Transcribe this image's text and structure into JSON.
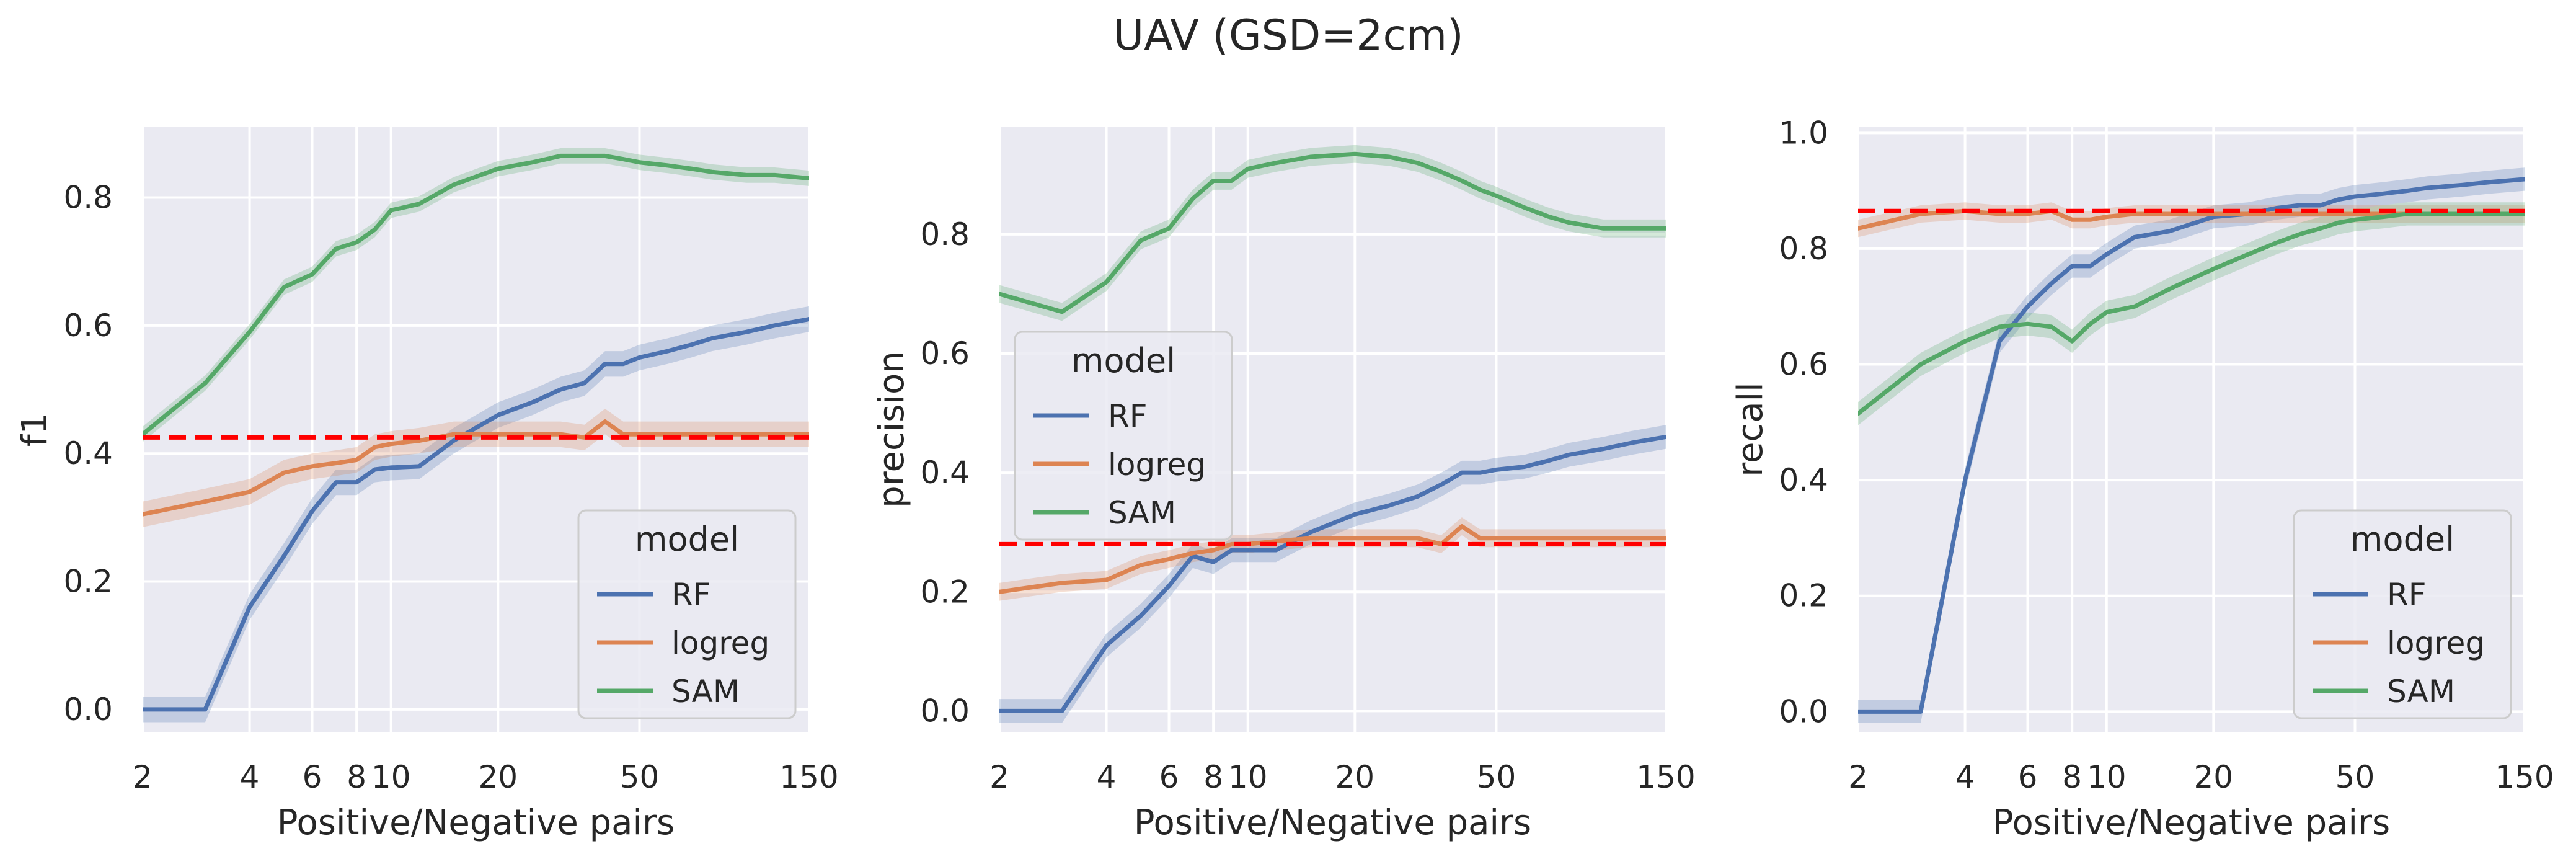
{
  "suptitle": "UAV (GSD=2cm)",
  "legend_title": "model",
  "series_names": [
    "RF",
    "logreg",
    "SAM"
  ],
  "colors": {
    "RF": "#4c72b0",
    "logreg": "#dd8452",
    "SAM": "#55a868",
    "baseline": "#ff0000",
    "panel_bg": "#eaeaf2"
  },
  "xlabel": "Positive/Negative pairs",
  "chart_data": [
    {
      "type": "line",
      "xscale": "log",
      "xlim": [
        2,
        150
      ],
      "ylim": [
        -0.035,
        0.91
      ],
      "xticks": [
        2,
        4,
        6,
        8,
        10,
        20,
        50,
        150
      ],
      "xtick_labels": [
        "2",
        "4",
        "6",
        "8",
        "10",
        "20",
        "50",
        "150"
      ],
      "yticks": [
        0.0,
        0.2,
        0.4,
        0.6,
        0.8
      ],
      "ytick_labels": [
        "0.0",
        "0.2",
        "0.4",
        "0.6",
        "0.8"
      ],
      "xlabel": "Positive/Negative pairs",
      "ylabel": "f1",
      "baseline": 0.425,
      "legend_position": "lower right",
      "series": [
        {
          "name": "RF",
          "x": [
            2,
            3,
            4,
            5,
            6,
            7,
            8,
            9,
            10,
            12,
            15,
            20,
            25,
            30,
            35,
            40,
            45,
            50,
            60,
            70,
            80,
            100,
            120,
            150
          ],
          "y": [
            0,
            0,
            0.16,
            0.24,
            0.31,
            0.355,
            0.355,
            0.375,
            0.378,
            0.38,
            0.42,
            0.46,
            0.48,
            0.5,
            0.51,
            0.54,
            0.54,
            0.55,
            0.56,
            0.57,
            0.58,
            0.59,
            0.6,
            0.61
          ],
          "band": 0.02
        },
        {
          "name": "logreg",
          "x": [
            2,
            3,
            4,
            5,
            6,
            7,
            8,
            9,
            10,
            12,
            15,
            20,
            25,
            30,
            35,
            40,
            45,
            50,
            60,
            70,
            80,
            100,
            120,
            150
          ],
          "y": [
            0.305,
            0.325,
            0.34,
            0.37,
            0.38,
            0.385,
            0.39,
            0.41,
            0.415,
            0.42,
            0.43,
            0.43,
            0.43,
            0.43,
            0.425,
            0.45,
            0.43,
            0.43,
            0.43,
            0.43,
            0.43,
            0.43,
            0.43,
            0.43
          ],
          "band": 0.02
        },
        {
          "name": "SAM",
          "x": [
            2,
            3,
            4,
            5,
            6,
            7,
            8,
            9,
            10,
            12,
            15,
            20,
            25,
            30,
            35,
            40,
            45,
            50,
            60,
            70,
            80,
            100,
            120,
            150
          ],
          "y": [
            0.43,
            0.51,
            0.59,
            0.66,
            0.68,
            0.72,
            0.73,
            0.75,
            0.78,
            0.79,
            0.82,
            0.845,
            0.855,
            0.865,
            0.865,
            0.865,
            0.86,
            0.855,
            0.85,
            0.845,
            0.84,
            0.835,
            0.835,
            0.83
          ],
          "band": 0.012
        }
      ]
    },
    {
      "type": "line",
      "xscale": "log",
      "xlim": [
        2,
        150
      ],
      "ylim": [
        -0.035,
        0.98
      ],
      "xticks": [
        2,
        4,
        6,
        8,
        10,
        20,
        50,
        150
      ],
      "xtick_labels": [
        "2",
        "4",
        "6",
        "8",
        "10",
        "20",
        "50",
        "150"
      ],
      "yticks": [
        0.0,
        0.2,
        0.4,
        0.6,
        0.8
      ],
      "ytick_labels": [
        "0.0",
        "0.2",
        "0.4",
        "0.6",
        "0.8"
      ],
      "xlabel": "Positive/Negative pairs",
      "ylabel": "precision",
      "baseline": 0.28,
      "legend_position": "upper left",
      "series": [
        {
          "name": "RF",
          "x": [
            2,
            3,
            4,
            5,
            6,
            7,
            8,
            9,
            10,
            12,
            15,
            20,
            25,
            30,
            35,
            40,
            45,
            50,
            60,
            70,
            80,
            100,
            120,
            150
          ],
          "y": [
            0,
            0,
            0.11,
            0.16,
            0.21,
            0.26,
            0.25,
            0.27,
            0.27,
            0.27,
            0.3,
            0.33,
            0.345,
            0.36,
            0.38,
            0.4,
            0.4,
            0.405,
            0.41,
            0.42,
            0.43,
            0.44,
            0.45,
            0.46
          ],
          "band": 0.02
        },
        {
          "name": "logreg",
          "x": [
            2,
            3,
            4,
            5,
            6,
            7,
            8,
            9,
            10,
            12,
            15,
            20,
            25,
            30,
            35,
            40,
            45,
            50,
            60,
            70,
            80,
            100,
            120,
            150
          ],
          "y": [
            0.2,
            0.215,
            0.22,
            0.245,
            0.255,
            0.265,
            0.27,
            0.28,
            0.28,
            0.285,
            0.29,
            0.29,
            0.29,
            0.29,
            0.28,
            0.31,
            0.29,
            0.29,
            0.29,
            0.29,
            0.29,
            0.29,
            0.29,
            0.29
          ],
          "band": 0.015
        },
        {
          "name": "SAM",
          "x": [
            2,
            3,
            4,
            5,
            6,
            7,
            8,
            9,
            10,
            12,
            15,
            20,
            25,
            30,
            35,
            40,
            45,
            50,
            60,
            70,
            80,
            100,
            120,
            150
          ],
          "y": [
            0.7,
            0.67,
            0.72,
            0.79,
            0.81,
            0.86,
            0.89,
            0.89,
            0.91,
            0.92,
            0.93,
            0.935,
            0.93,
            0.92,
            0.905,
            0.89,
            0.875,
            0.865,
            0.845,
            0.83,
            0.82,
            0.81,
            0.81,
            0.81
          ],
          "band": 0.015
        }
      ]
    },
    {
      "type": "line",
      "xscale": "log",
      "xlim": [
        2,
        150
      ],
      "ylim": [
        -0.035,
        1.01
      ],
      "xticks": [
        2,
        4,
        6,
        8,
        10,
        20,
        50,
        150
      ],
      "xtick_labels": [
        "2",
        "4",
        "6",
        "8",
        "10",
        "20",
        "50",
        "150"
      ],
      "yticks": [
        0.0,
        0.2,
        0.4,
        0.6,
        0.8,
        1.0
      ],
      "ytick_labels": [
        "0.0",
        "0.2",
        "0.4",
        "0.6",
        "0.8",
        "1.0"
      ],
      "xlabel": "Positive/Negative pairs",
      "ylabel": "recall",
      "baseline": 0.865,
      "legend_position": "lower right",
      "series": [
        {
          "name": "RF",
          "x": [
            2,
            3,
            4,
            5,
            6,
            7,
            8,
            9,
            10,
            12,
            15,
            20,
            25,
            30,
            35,
            40,
            45,
            50,
            60,
            70,
            80,
            100,
            120,
            150
          ],
          "y": [
            0,
            0,
            0.4,
            0.64,
            0.7,
            0.74,
            0.77,
            0.77,
            0.79,
            0.82,
            0.83,
            0.855,
            0.86,
            0.87,
            0.875,
            0.875,
            0.885,
            0.89,
            0.895,
            0.9,
            0.905,
            0.91,
            0.915,
            0.92
          ],
          "band": 0.02
        },
        {
          "name": "logreg",
          "x": [
            2,
            3,
            4,
            5,
            6,
            7,
            8,
            9,
            10,
            12,
            15,
            20,
            25,
            30,
            35,
            40,
            45,
            50,
            60,
            70,
            80,
            100,
            120,
            150
          ],
          "y": [
            0.835,
            0.86,
            0.865,
            0.86,
            0.86,
            0.865,
            0.85,
            0.85,
            0.855,
            0.86,
            0.86,
            0.86,
            0.86,
            0.86,
            0.86,
            0.86,
            0.86,
            0.86,
            0.86,
            0.86,
            0.86,
            0.86,
            0.86,
            0.86
          ],
          "band": 0.015
        },
        {
          "name": "SAM",
          "x": [
            2,
            3,
            4,
            5,
            6,
            7,
            8,
            9,
            10,
            12,
            15,
            20,
            25,
            30,
            35,
            40,
            45,
            50,
            60,
            70,
            80,
            100,
            120,
            150
          ],
          "y": [
            0.515,
            0.6,
            0.64,
            0.665,
            0.67,
            0.665,
            0.64,
            0.67,
            0.69,
            0.7,
            0.73,
            0.765,
            0.79,
            0.81,
            0.825,
            0.835,
            0.845,
            0.85,
            0.855,
            0.86,
            0.86,
            0.86,
            0.86,
            0.86
          ],
          "band": 0.02
        }
      ]
    }
  ]
}
